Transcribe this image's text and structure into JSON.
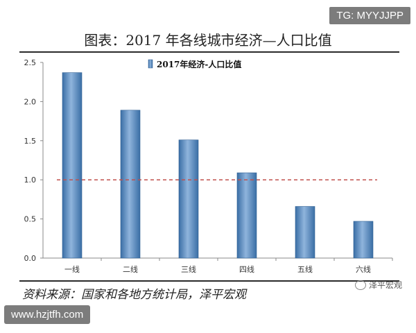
{
  "watermark_top": "TG: MYYJJPP",
  "watermark_bottom": "www.hzjtfh.com",
  "brand": "泽平宏观",
  "source": "资料来源：国家和各地方统计局，泽平宏观",
  "chart_data": {
    "type": "bar",
    "title": "图表：2017 年各线城市经济—人口比值",
    "categories": [
      "一线",
      "二线",
      "三线",
      "四线",
      "五线",
      "六线"
    ],
    "series": [
      {
        "name": "2017年经济-人口比值",
        "values": [
          2.37,
          1.89,
          1.51,
          1.09,
          0.66,
          0.47
        ]
      }
    ],
    "reference_line": {
      "value": 1.0,
      "color": "#c0504d",
      "style": "dashed"
    },
    "ylim": [
      0,
      2.5
    ],
    "yticks": [
      "0.0",
      "0.5",
      "1.0",
      "1.5",
      "2.0",
      "2.5"
    ],
    "grid": false,
    "legend_position": "top-center",
    "bar_color": "#4f81bd"
  }
}
